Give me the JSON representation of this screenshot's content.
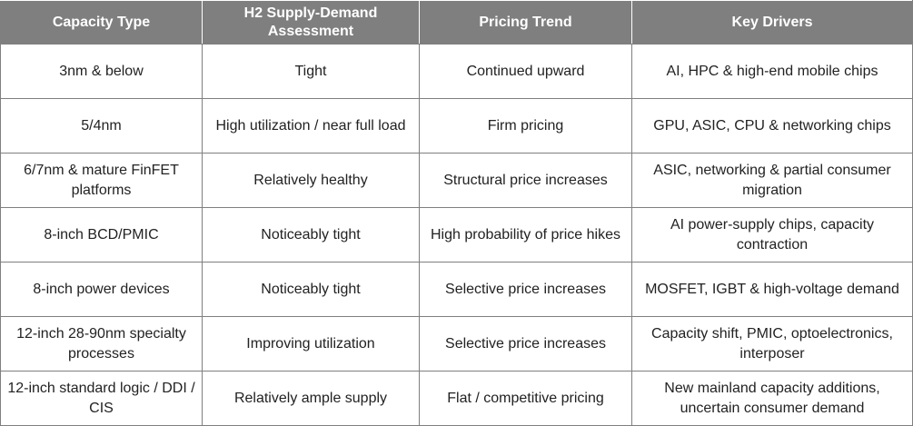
{
  "table": {
    "headers": [
      "Capacity Type",
      "H2 Supply-Demand Assessment",
      "Pricing Trend",
      "Key Drivers"
    ],
    "rows": [
      [
        "3nm & below",
        "Tight",
        "Continued upward",
        "AI, HPC & high-end mobile chips"
      ],
      [
        "5/4nm",
        "High utilization / near full load",
        "Firm pricing",
        "GPU, ASIC, CPU & networking chips"
      ],
      [
        "6/7nm & mature FinFET platforms",
        "Relatively healthy",
        "Structural price increases",
        "ASIC, networking & partial consumer migration"
      ],
      [
        "8-inch BCD/PMIC",
        "Noticeably tight",
        "High probability of price hikes",
        "AI power-supply chips, capacity contraction"
      ],
      [
        "8-inch power devices",
        "Noticeably tight",
        "Selective price increases",
        "MOSFET, IGBT & high-voltage demand"
      ],
      [
        "12-inch 28-90nm specialty processes",
        "Improving utilization",
        "Selective price increases",
        "Capacity shift, PMIC, optoelectronics, interposer"
      ],
      [
        "12-inch standard logic / DDI / CIS",
        "Relatively ample supply",
        "Flat / competitive pricing",
        "New mainland capacity additions, uncertain consumer demand"
      ]
    ]
  },
  "colors": {
    "header_bg": "#7f7f7f",
    "header_text": "#ffffff",
    "border": "#7f7f7f",
    "body_text": "#222222"
  }
}
